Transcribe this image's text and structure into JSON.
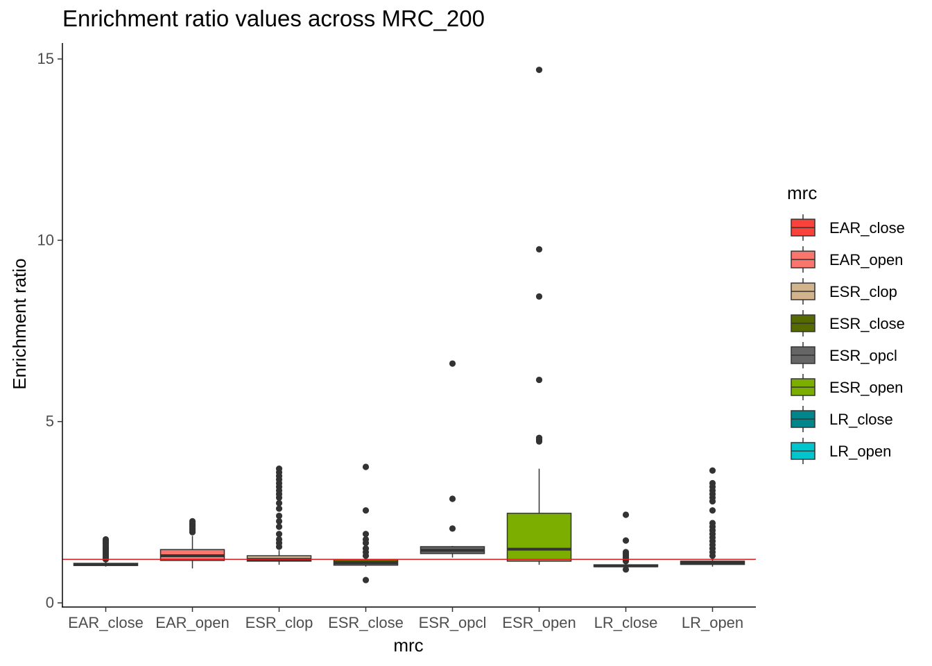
{
  "chart_data": {
    "type": "boxplot",
    "title": "Enrichment ratio values across MRC_200",
    "xlabel": "mrc",
    "ylabel": "Enrichment ratio",
    "ylim": [
      0,
      15
    ],
    "yticks": [
      0,
      5,
      10,
      15
    ],
    "reference_line": {
      "y": 1.2,
      "color": "#e41a1c"
    },
    "legend": {
      "title": "mrc",
      "position": "right"
    },
    "grid": false,
    "categories": [
      "EAR_close",
      "EAR_open",
      "ESR_clop",
      "ESR_close",
      "ESR_opcl",
      "ESR_open",
      "LR_close",
      "LR_open"
    ],
    "colors": [
      "#f8423a",
      "#f8766d",
      "#d2b48c",
      "#556b00",
      "#666666",
      "#7cae00",
      "#00868b",
      "#00c5cd"
    ],
    "boxes": [
      {
        "name": "EAR_close",
        "q1": 1.03,
        "median": 1.06,
        "q3": 1.09,
        "whisker_low": 1.0,
        "whisker_high": 1.14,
        "outliers": [
          1.2,
          1.25,
          1.3,
          1.35,
          1.4,
          1.45,
          1.5,
          1.55,
          1.6,
          1.65,
          1.7,
          1.75
        ]
      },
      {
        "name": "EAR_open",
        "q1": 1.17,
        "median": 1.3,
        "q3": 1.47,
        "whisker_low": 0.95,
        "whisker_high": 1.85,
        "outliers": [
          1.95,
          2.0,
          2.05,
          2.1,
          2.15,
          2.2,
          2.25
        ]
      },
      {
        "name": "ESR_clop",
        "q1": 1.15,
        "median": 1.2,
        "q3": 1.3,
        "whisker_low": 1.05,
        "whisker_high": 1.45,
        "outliers": [
          1.55,
          1.65,
          1.75,
          1.9,
          2.1,
          2.25,
          2.4,
          2.6,
          2.75,
          2.9,
          3.0,
          3.1,
          3.2,
          3.3,
          3.4,
          3.5,
          3.6,
          3.7
        ]
      },
      {
        "name": "ESR_close",
        "q1": 1.04,
        "median": 1.11,
        "q3": 1.2,
        "whisker_low": 1.0,
        "whisker_high": 1.25,
        "outliers": [
          0.63,
          1.3,
          1.4,
          1.5,
          1.65,
          1.75,
          1.9,
          2.55,
          3.75
        ]
      },
      {
        "name": "ESR_opcl",
        "q1": 1.36,
        "median": 1.45,
        "q3": 1.55,
        "whisker_low": 1.25,
        "whisker_high": 1.57,
        "outliers": [
          2.05,
          2.87,
          6.6
        ]
      },
      {
        "name": "ESR_open",
        "q1": 1.15,
        "median": 1.48,
        "q3": 2.47,
        "whisker_low": 1.05,
        "whisker_high": 3.7,
        "outliers": [
          4.45,
          4.5,
          4.55,
          6.15,
          8.45,
          9.75,
          14.7
        ]
      },
      {
        "name": "LR_close",
        "q1": 1.0,
        "median": 1.02,
        "q3": 1.05,
        "whisker_low": 0.95,
        "whisker_high": 1.1,
        "outliers": [
          0.92,
          1.15,
          1.2,
          1.25,
          1.3,
          1.35,
          1.4,
          1.72,
          2.43
        ]
      },
      {
        "name": "LR_open",
        "q1": 1.06,
        "median": 1.1,
        "q3": 1.15,
        "whisker_low": 1.0,
        "whisker_high": 1.25,
        "outliers": [
          1.3,
          1.4,
          1.5,
          1.6,
          1.7,
          1.8,
          1.9,
          2.0,
          2.1,
          2.2,
          2.55,
          2.8,
          2.9,
          3.0,
          3.1,
          3.2,
          3.3,
          3.65
        ]
      }
    ]
  }
}
